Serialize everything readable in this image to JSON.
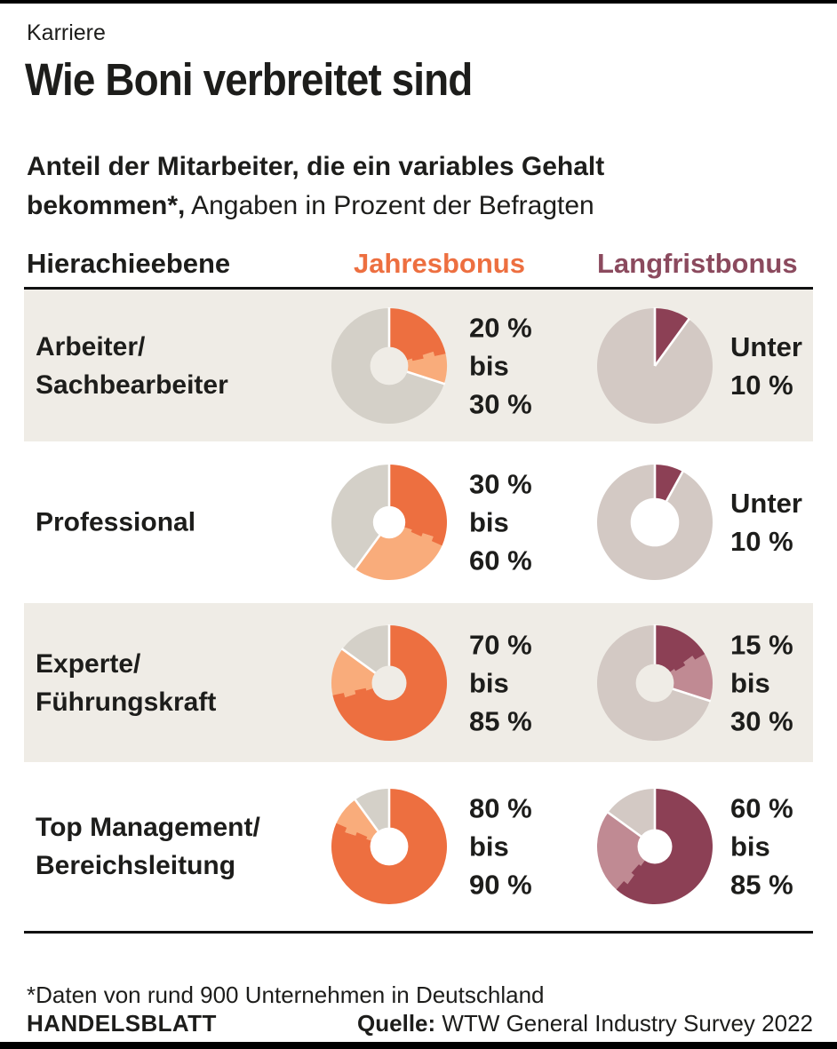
{
  "page": {
    "kicker": "Karriere",
    "title": "Wie Boni verbreitet sind",
    "subtitle_bold_line1": "Anteil der Mitarbeiter, die ein variables Gehalt",
    "subtitle_bold_line2": "bekommen*,",
    "subtitle_regular": " Angaben in Prozent der Befragten"
  },
  "table_header": {
    "level": "Hierachieebene",
    "annual": "Jahresbonus",
    "longterm": "Langfristbonus"
  },
  "footer": {
    "footnote": "*Daten von rund 900 Unternehmen in Deutschland",
    "brand": "HANDELSBLATT",
    "source_label": "Quelle:",
    "source_text": " WTW General Industry Survey 2022"
  },
  "colors": {
    "annual_dark": "#ed6f40",
    "annual_light": "#f9ac7b",
    "annual_rest": "#d4d0c8",
    "longterm_dark": "#8c4055",
    "longterm_light": "#c08a93",
    "longterm_rest": "#d3c9c4",
    "row_stripe": "#efece6",
    "row_plain": "#ffffff",
    "annual_header": "#ed6f40",
    "longterm_header": "#8b4a5e",
    "gap": "#ffffff"
  },
  "chart_data": {
    "type": "pie",
    "title": "Wie Boni verbreitet sind",
    "subtitle": "Anteil der Mitarbeiter, die ein variables Gehalt bekommen, Angaben in Prozent der Befragten",
    "legend_position": "none",
    "columns": [
      "Jahresbonus",
      "Langfristbonus"
    ],
    "note": "Each donut shows share of surveyed employees receiving the bonus: dark segment = lower bound, light segment = upper bound of range, remainder gray.",
    "rows": [
      {
        "level_lines": [
          "Arbeiter/",
          "Sachbearbeiter"
        ],
        "jahresbonus": {
          "range_text_lines": [
            "20 %",
            "bis",
            "30 %"
          ],
          "min_pct": 20,
          "max_pct": 30,
          "dark_pct": 20,
          "light_pct": 10,
          "hole": 0.33
        },
        "langfristbonus": {
          "range_text_lines": [
            "Unter",
            "10 %"
          ],
          "min_pct": 0,
          "max_pct": 10,
          "dark_pct": 10,
          "light_pct": 0,
          "hole": 0
        }
      },
      {
        "level_lines": [
          "Professional"
        ],
        "jahresbonus": {
          "range_text_lines": [
            "30 %",
            "bis",
            "60 %"
          ],
          "min_pct": 30,
          "max_pct": 60,
          "dark_pct": 30,
          "light_pct": 30,
          "hole": 0.28
        },
        "langfristbonus": {
          "range_text_lines": [
            "Unter",
            "10 %"
          ],
          "min_pct": 0,
          "max_pct": 10,
          "dark_pct": 8,
          "light_pct": 0,
          "hole": 0.42
        }
      },
      {
        "level_lines": [
          "Experte/",
          "Führungskraft"
        ],
        "jahresbonus": {
          "range_text_lines": [
            "70 %",
            "bis",
            "85 %"
          ],
          "min_pct": 70,
          "max_pct": 85,
          "dark_pct": 70,
          "light_pct": 15,
          "hole": 0.3
        },
        "langfristbonus": {
          "range_text_lines": [
            "15 %",
            "bis",
            "30 %"
          ],
          "min_pct": 15,
          "max_pct": 30,
          "dark_pct": 15,
          "light_pct": 15,
          "hole": 0.33
        }
      },
      {
        "level_lines": [
          "Top Management/",
          "Bereichsleitung"
        ],
        "jahresbonus": {
          "range_text_lines": [
            "80 %",
            "bis",
            "90 %"
          ],
          "min_pct": 80,
          "max_pct": 90,
          "dark_pct": 80,
          "light_pct": 10,
          "hole": 0.33
        },
        "langfristbonus": {
          "range_text_lines": [
            "60 %",
            "bis",
            "85 %"
          ],
          "min_pct": 60,
          "max_pct": 85,
          "dark_pct": 60,
          "light_pct": 25,
          "hole": 0.3
        }
      }
    ]
  }
}
